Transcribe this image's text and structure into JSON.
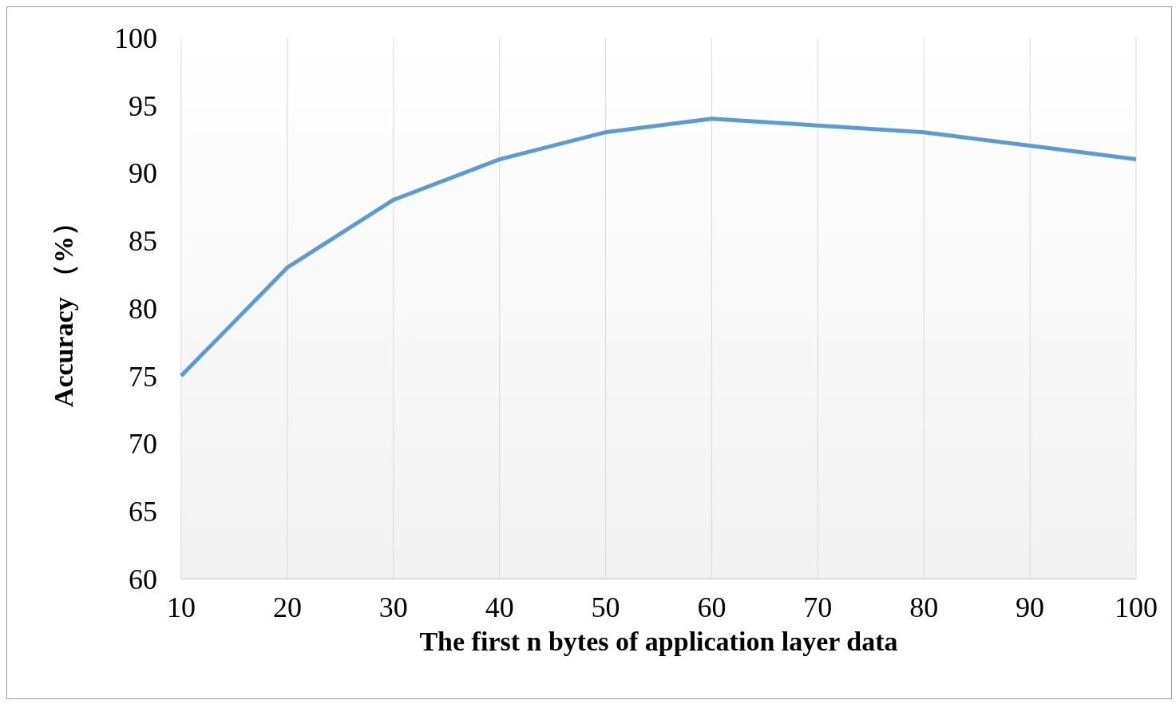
{
  "chart_data": {
    "type": "line",
    "xlabel": "The first n bytes of application layer data",
    "ylabel": "Accuracy （%）",
    "categories": [
      "10",
      "20",
      "30",
      "40",
      "50",
      "60",
      "70",
      "80",
      "90",
      "100"
    ],
    "series": [
      {
        "color": "#5b9bd5",
        "values": [
          75,
          83,
          88,
          91,
          93,
          94,
          93.5,
          93,
          92,
          91
        ]
      }
    ],
    "ylim": [
      60,
      100
    ],
    "yticks": [
      60,
      65,
      70,
      75,
      80,
      85,
      90,
      95,
      100
    ],
    "grid": "x"
  }
}
